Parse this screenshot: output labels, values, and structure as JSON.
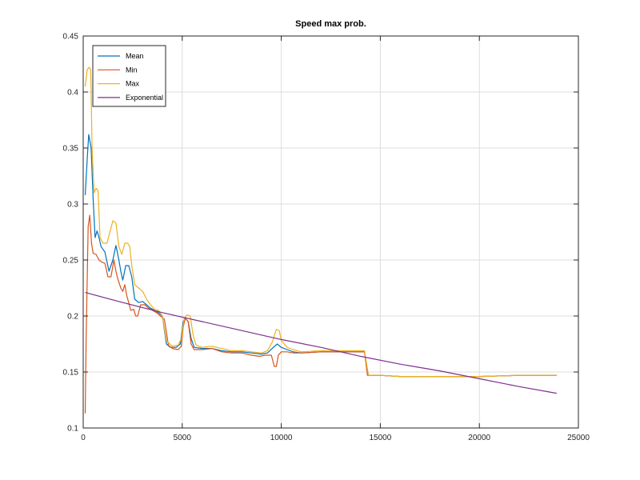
{
  "chart_data": {
    "type": "line",
    "title": "Speed max prob.",
    "xlabel": "",
    "ylabel": "",
    "xlim": [
      0,
      25000
    ],
    "ylim": [
      0.1,
      0.45
    ],
    "xticks": [
      0,
      5000,
      10000,
      15000,
      20000,
      25000
    ],
    "xtick_labels": [
      "0",
      "5000",
      "10000",
      "15000",
      "20000",
      "25000"
    ],
    "yticks": [
      0.1,
      0.15,
      0.2,
      0.25,
      0.3,
      0.35,
      0.4,
      0.45
    ],
    "ytick_labels": [
      "0.1",
      "0.15",
      "0.2",
      "0.25",
      "0.3",
      "0.35",
      "0.4",
      "0.45"
    ],
    "grid": true,
    "legend_position": "top-left",
    "series": [
      {
        "name": "Mean",
        "color": "#0072BD",
        "points": [
          [
            100,
            0.308
          ],
          [
            200,
            0.34
          ],
          [
            280,
            0.362
          ],
          [
            400,
            0.35
          ],
          [
            500,
            0.305
          ],
          [
            600,
            0.27
          ],
          [
            700,
            0.276
          ],
          [
            800,
            0.27
          ],
          [
            900,
            0.262
          ],
          [
            1100,
            0.257
          ],
          [
            1300,
            0.24
          ],
          [
            1500,
            0.25
          ],
          [
            1650,
            0.263
          ],
          [
            1800,
            0.25
          ],
          [
            1900,
            0.24
          ],
          [
            2000,
            0.232
          ],
          [
            2150,
            0.245
          ],
          [
            2300,
            0.245
          ],
          [
            2450,
            0.235
          ],
          [
            2600,
            0.215
          ],
          [
            2800,
            0.212
          ],
          [
            3000,
            0.213
          ],
          [
            3200,
            0.21
          ],
          [
            3400,
            0.207
          ],
          [
            3600,
            0.205
          ],
          [
            3800,
            0.203
          ],
          [
            4000,
            0.2
          ],
          [
            4200,
            0.175
          ],
          [
            4400,
            0.172
          ],
          [
            4700,
            0.172
          ],
          [
            4900,
            0.175
          ],
          [
            5050,
            0.195
          ],
          [
            5150,
            0.198
          ],
          [
            5300,
            0.195
          ],
          [
            5450,
            0.18
          ],
          [
            5600,
            0.172
          ],
          [
            6000,
            0.171
          ],
          [
            6500,
            0.171
          ],
          [
            7000,
            0.169
          ],
          [
            7500,
            0.168
          ],
          [
            8000,
            0.168
          ],
          [
            8500,
            0.167
          ],
          [
            9000,
            0.166
          ],
          [
            9300,
            0.167
          ],
          [
            9600,
            0.172
          ],
          [
            9800,
            0.175
          ],
          [
            10000,
            0.172
          ],
          [
            10300,
            0.17
          ],
          [
            10600,
            0.168
          ],
          [
            11000,
            0.167
          ],
          [
            12000,
            0.168
          ],
          [
            13000,
            0.168
          ],
          [
            14000,
            0.168
          ],
          [
            14200,
            0.168
          ],
          [
            14400,
            0.147
          ],
          [
            15000,
            0.147
          ],
          [
            16000,
            0.146
          ],
          [
            18000,
            0.146
          ],
          [
            20000,
            0.146
          ],
          [
            22000,
            0.147
          ],
          [
            23900,
            0.147
          ]
        ]
      },
      {
        "name": "Min",
        "color": "#D95319",
        "points": [
          [
            100,
            0.113
          ],
          [
            150,
            0.18
          ],
          [
            250,
            0.28
          ],
          [
            330,
            0.29
          ],
          [
            420,
            0.265
          ],
          [
            500,
            0.256
          ],
          [
            650,
            0.255
          ],
          [
            800,
            0.25
          ],
          [
            950,
            0.248
          ],
          [
            1100,
            0.247
          ],
          [
            1250,
            0.235
          ],
          [
            1400,
            0.235
          ],
          [
            1550,
            0.25
          ],
          [
            1650,
            0.24
          ],
          [
            1750,
            0.233
          ],
          [
            1900,
            0.225
          ],
          [
            2000,
            0.222
          ],
          [
            2100,
            0.228
          ],
          [
            2200,
            0.218
          ],
          [
            2300,
            0.212
          ],
          [
            2400,
            0.205
          ],
          [
            2550,
            0.206
          ],
          [
            2650,
            0.2
          ],
          [
            2750,
            0.2
          ],
          [
            2900,
            0.21
          ],
          [
            3100,
            0.21
          ],
          [
            3300,
            0.207
          ],
          [
            3500,
            0.205
          ],
          [
            3700,
            0.203
          ],
          [
            3900,
            0.2
          ],
          [
            4100,
            0.197
          ],
          [
            4300,
            0.174
          ],
          [
            4500,
            0.171
          ],
          [
            4800,
            0.17
          ],
          [
            4950,
            0.173
          ],
          [
            5050,
            0.19
          ],
          [
            5150,
            0.198
          ],
          [
            5300,
            0.195
          ],
          [
            5450,
            0.175
          ],
          [
            5600,
            0.17
          ],
          [
            6000,
            0.17
          ],
          [
            6500,
            0.171
          ],
          [
            7000,
            0.168
          ],
          [
            7500,
            0.167
          ],
          [
            8000,
            0.167
          ],
          [
            8500,
            0.165
          ],
          [
            8900,
            0.164
          ],
          [
            9200,
            0.165
          ],
          [
            9500,
            0.165
          ],
          [
            9650,
            0.155
          ],
          [
            9750,
            0.155
          ],
          [
            9850,
            0.165
          ],
          [
            10000,
            0.168
          ],
          [
            10300,
            0.168
          ],
          [
            10600,
            0.167
          ],
          [
            11000,
            0.167
          ],
          [
            12000,
            0.168
          ],
          [
            13000,
            0.168
          ],
          [
            14000,
            0.168
          ],
          [
            14200,
            0.168
          ],
          [
            14350,
            0.147
          ],
          [
            15000,
            0.147
          ],
          [
            16000,
            0.146
          ],
          [
            18000,
            0.146
          ],
          [
            20000,
            0.146
          ],
          [
            22000,
            0.147
          ],
          [
            23900,
            0.147
          ]
        ]
      },
      {
        "name": "Max",
        "color": "#EDB120",
        "points": [
          [
            100,
            0.405
          ],
          [
            200,
            0.42
          ],
          [
            300,
            0.422
          ],
          [
            380,
            0.42
          ],
          [
            450,
            0.35
          ],
          [
            550,
            0.31
          ],
          [
            650,
            0.314
          ],
          [
            750,
            0.312
          ],
          [
            850,
            0.27
          ],
          [
            1000,
            0.265
          ],
          [
            1200,
            0.265
          ],
          [
            1350,
            0.275
          ],
          [
            1500,
            0.285
          ],
          [
            1650,
            0.283
          ],
          [
            1800,
            0.262
          ],
          [
            1950,
            0.255
          ],
          [
            2100,
            0.265
          ],
          [
            2250,
            0.265
          ],
          [
            2350,
            0.262
          ],
          [
            2450,
            0.245
          ],
          [
            2600,
            0.228
          ],
          [
            2800,
            0.225
          ],
          [
            3000,
            0.222
          ],
          [
            3200,
            0.215
          ],
          [
            3400,
            0.21
          ],
          [
            3600,
            0.206
          ],
          [
            3800,
            0.205
          ],
          [
            4000,
            0.2
          ],
          [
            4200,
            0.178
          ],
          [
            4500,
            0.173
          ],
          [
            4800,
            0.174
          ],
          [
            4950,
            0.18
          ],
          [
            5100,
            0.198
          ],
          [
            5250,
            0.201
          ],
          [
            5400,
            0.2
          ],
          [
            5550,
            0.183
          ],
          [
            5700,
            0.174
          ],
          [
            6000,
            0.172
          ],
          [
            6500,
            0.173
          ],
          [
            7000,
            0.171
          ],
          [
            7500,
            0.169
          ],
          [
            8000,
            0.169
          ],
          [
            8500,
            0.168
          ],
          [
            9000,
            0.167
          ],
          [
            9300,
            0.169
          ],
          [
            9550,
            0.177
          ],
          [
            9750,
            0.188
          ],
          [
            9900,
            0.187
          ],
          [
            10000,
            0.178
          ],
          [
            10300,
            0.172
          ],
          [
            10600,
            0.17
          ],
          [
            11000,
            0.168
          ],
          [
            12000,
            0.169
          ],
          [
            13000,
            0.169
          ],
          [
            14000,
            0.169
          ],
          [
            14200,
            0.169
          ],
          [
            14400,
            0.147
          ],
          [
            15000,
            0.147
          ],
          [
            16000,
            0.146
          ],
          [
            18000,
            0.146
          ],
          [
            20000,
            0.146
          ],
          [
            22000,
            0.147
          ],
          [
            23900,
            0.147
          ]
        ]
      },
      {
        "name": "Exponential",
        "color": "#7E2F8E",
        "points": [
          [
            100,
            0.221
          ],
          [
            2000,
            0.212
          ],
          [
            4000,
            0.203
          ],
          [
            6000,
            0.195
          ],
          [
            8000,
            0.187
          ],
          [
            10000,
            0.179
          ],
          [
            12000,
            0.172
          ],
          [
            14000,
            0.164
          ],
          [
            16000,
            0.157
          ],
          [
            18000,
            0.151
          ],
          [
            20000,
            0.144
          ],
          [
            22000,
            0.137
          ],
          [
            23900,
            0.131
          ]
        ]
      }
    ]
  }
}
